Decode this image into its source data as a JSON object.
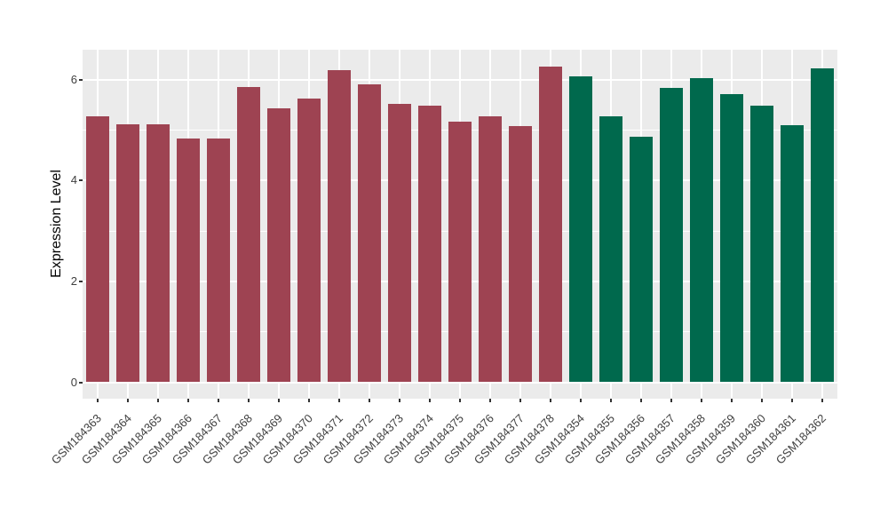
{
  "chart_data": {
    "type": "bar",
    "title": "",
    "xlabel": "",
    "ylabel": "Expression Level",
    "legend": "none",
    "grid": "on",
    "panel_background": "#EBEBEB",
    "gridline_color": "#FFFFFF",
    "tick_label_color": "#404040",
    "axis_title_color": "#000000",
    "bar_color_red": "#9E4352",
    "bar_color_green": "#00694D",
    "ylim": [
      -0.33,
      6.63
    ],
    "yticks": [
      0,
      2,
      4,
      6
    ],
    "yticks_minor": [
      1,
      3,
      5
    ],
    "categories": [
      "GSM184363",
      "GSM184364",
      "GSM184365",
      "GSM184366",
      "GSM184367",
      "GSM184368",
      "GSM184369",
      "GSM184370",
      "GSM184371",
      "GSM184372",
      "GSM184373",
      "GSM184374",
      "GSM184375",
      "GSM184376",
      "GSM184377",
      "GSM184378",
      "GSM184354",
      "GSM184355",
      "GSM184356",
      "GSM184357",
      "GSM184358",
      "GSM184359",
      "GSM184360",
      "GSM184361",
      "GSM184362"
    ],
    "values": [
      5.27,
      5.11,
      5.12,
      4.83,
      4.83,
      5.86,
      5.43,
      5.62,
      6.19,
      5.9,
      5.52,
      5.48,
      5.16,
      5.28,
      5.08,
      6.26,
      6.06,
      5.28,
      4.86,
      5.84,
      6.03,
      5.72,
      5.48,
      5.1,
      6.22
    ],
    "bar_colors": [
      "#9E4352",
      "#9E4352",
      "#9E4352",
      "#9E4352",
      "#9E4352",
      "#9E4352",
      "#9E4352",
      "#9E4352",
      "#9E4352",
      "#9E4352",
      "#9E4352",
      "#9E4352",
      "#9E4352",
      "#9E4352",
      "#9E4352",
      "#9E4352",
      "#00694D",
      "#00694D",
      "#00694D",
      "#00694D",
      "#00694D",
      "#00694D",
      "#00694D",
      "#00694D",
      "#00694D"
    ]
  }
}
